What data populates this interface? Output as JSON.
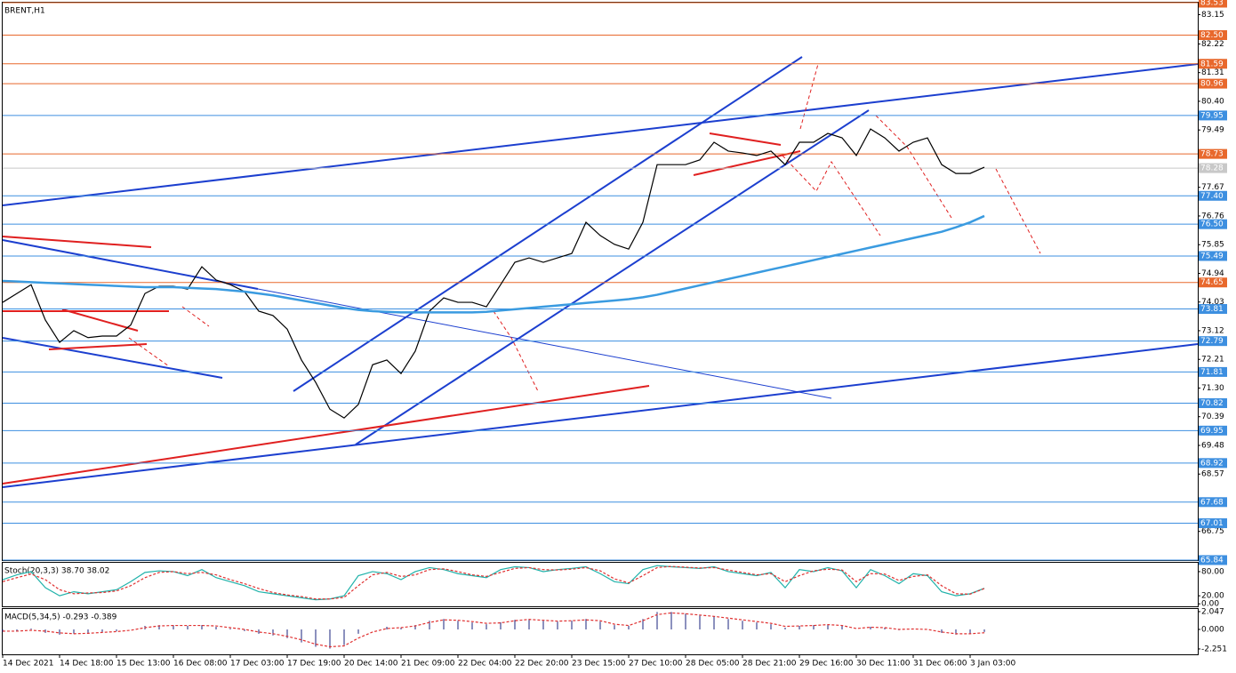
{
  "chart_data": [
    {
      "type": "line",
      "title": "BRENT,H1",
      "categories": [
        "14 Dec 2021",
        null,
        null,
        null,
        "14 Dec 18:00",
        null,
        null,
        null,
        "15 Dec 13:00",
        null,
        null,
        null,
        "16 Dec 08:00",
        null,
        null,
        null,
        "17 Dec 03:00",
        null,
        null,
        null,
        "17 Dec 19:00",
        null,
        null,
        null,
        "20 Dec 14:00",
        null,
        null,
        null,
        "21 Dec 09:00",
        null,
        null,
        null,
        "22 Dec 04:00",
        null,
        null,
        null,
        "22 Dec 20:00",
        null,
        null,
        null,
        "23 Dec 15:00",
        null,
        null,
        null,
        "27 Dec 10:00",
        null,
        null,
        null,
        "28 Dec 05:00",
        null,
        null,
        null,
        "28 Dec 21:00",
        null,
        null,
        null,
        "29 Dec 16:00",
        null,
        null,
        null,
        "30 Dec 11:00",
        null,
        null,
        null,
        "31 Dec 06:00",
        null,
        null,
        null,
        "3 Jan 03:00",
        null
      ],
      "series": [
        {
          "color": "#000000",
          "values": [
            74.02,
            74.3,
            74.58,
            73.46,
            72.75,
            73.12,
            72.9,
            72.95,
            72.95,
            73.3,
            74.3,
            74.53,
            74.53,
            74.44,
            75.15,
            74.73,
            74.58,
            74.36,
            73.74,
            73.6,
            73.17,
            72.19,
            71.48,
            70.63,
            70.35,
            70.78,
            72.04,
            72.19,
            71.76,
            72.47,
            73.74,
            74.16,
            74.02,
            74.02,
            73.88,
            74.58,
            75.29,
            75.43,
            75.29,
            75.43,
            75.57,
            76.56,
            76.14,
            75.86,
            75.71,
            76.56,
            78.39,
            78.39,
            78.39,
            78.54,
            79.1,
            78.82,
            78.76,
            78.68,
            78.82,
            78.39,
            79.1,
            79.1,
            79.38,
            79.24,
            78.68,
            79.52,
            79.24,
            78.82,
            79.1,
            79.24,
            78.39,
            78.11,
            78.11,
            78.31
          ]
        },
        {
          "color": "#3a9be0",
          "values": [
            74.7,
            74.68,
            74.66,
            74.64,
            74.62,
            74.6,
            74.58,
            74.56,
            74.54,
            74.52,
            74.5,
            74.5,
            74.5,
            74.48,
            74.46,
            74.44,
            74.4,
            74.36,
            74.3,
            74.24,
            74.16,
            74.08,
            74.0,
            73.92,
            73.84,
            73.78,
            73.74,
            73.72,
            73.7,
            73.7,
            73.7,
            73.7,
            73.7,
            73.7,
            73.72,
            73.76,
            73.8,
            73.84,
            73.88,
            73.92,
            73.96,
            74.0,
            74.04,
            74.08,
            74.12,
            74.18,
            74.26,
            74.36,
            74.46,
            74.56,
            74.66,
            74.76,
            74.86,
            74.96,
            75.06,
            75.16,
            75.26,
            75.36,
            75.46,
            75.56,
            75.66,
            75.76,
            75.86,
            75.96,
            76.06,
            76.16,
            76.26,
            76.4,
            76.56,
            76.76
          ]
        }
      ],
      "ylim": [
        65.84,
        83.53
      ],
      "yticks": [
        83.15,
        82.22,
        81.31,
        {
          "value": 80.4,
          "label": "80.40"
        },
        79.49,
        77.67,
        76.76,
        75.85,
        74.94,
        74.03,
        73.12,
        72.21,
        {
          "value": 71.3,
          "label": "71.30"
        },
        70.39,
        69.48,
        68.57,
        66.75
      ],
      "levels": [
        {
          "value": 83.53,
          "color": "#e8682c"
        },
        {
          "value": 82.5,
          "label": "82.50",
          "color": "#e8682c"
        },
        {
          "value": 81.59,
          "color": "#e8682c"
        },
        {
          "value": 80.96,
          "color": "#e8682c"
        },
        {
          "value": 79.95,
          "color": "#3d8fe0"
        },
        {
          "value": 78.73,
          "color": "#e8682c"
        },
        {
          "value": 78.28,
          "color": "#c8c8c8"
        },
        {
          "value": 77.4,
          "label": "77.40",
          "color": "#3d8fe0"
        },
        {
          "value": 76.5,
          "label": "76.50",
          "color": "#3d8fe0"
        },
        {
          "value": 75.49,
          "color": "#3d8fe0"
        },
        {
          "value": 74.65,
          "color": "#e8682c"
        },
        {
          "value": 73.81,
          "color": "#3d8fe0"
        },
        {
          "value": 72.79,
          "color": "#3d8fe0"
        },
        {
          "value": 71.81,
          "color": "#3d8fe0"
        },
        {
          "value": 70.82,
          "color": "#3d8fe0"
        },
        {
          "value": 69.95,
          "color": "#3d8fe0"
        },
        {
          "value": 68.92,
          "color": "#3d8fe0"
        },
        {
          "value": 67.68,
          "color": "#3d8fe0"
        },
        {
          "value": 67.01,
          "color": "#3d8fe0"
        },
        {
          "value": 65.84,
          "color": "#3d8fe0"
        }
      ]
    },
    {
      "type": "line",
      "title": "Stoch(20,3,3) 38.70 38.02",
      "series": [
        {
          "color": "#20b2aa",
          "values": [
            60,
            72,
            80,
            40,
            20,
            30,
            25,
            30,
            35,
            55,
            78,
            82,
            80,
            70,
            85,
            65,
            55,
            45,
            30,
            25,
            20,
            15,
            10,
            12,
            20,
            70,
            80,
            75,
            60,
            80,
            90,
            85,
            75,
            70,
            65,
            85,
            92,
            90,
            80,
            85,
            88,
            92,
            75,
            55,
            50,
            85,
            95,
            92,
            90,
            88,
            92,
            80,
            75,
            70,
            78,
            40,
            85,
            80,
            90,
            82,
            40,
            85,
            70,
            50,
            75,
            70,
            30,
            20,
            25,
            38.7
          ]
        },
        {
          "color": "#e03030",
          "dashed": true,
          "values": [
            55,
            65,
            74,
            60,
            35,
            25,
            27,
            28,
            32,
            45,
            65,
            78,
            80,
            75,
            78,
            72,
            60,
            50,
            38,
            28,
            22,
            18,
            12,
            12,
            16,
            45,
            72,
            78,
            68,
            72,
            85,
            87,
            80,
            72,
            68,
            78,
            88,
            90,
            85,
            84,
            86,
            90,
            82,
            62,
            52,
            70,
            90,
            93,
            91,
            89,
            90,
            84,
            78,
            72,
            75,
            55,
            70,
            82,
            86,
            84,
            55,
            75,
            74,
            58,
            68,
            72,
            45,
            25,
            24,
            38.02
          ]
        }
      ],
      "ylim": [
        -4,
        102
      ],
      "yticks": [
        {
          "value": 80,
          "label": "80.00"
        },
        {
          "value": 20,
          "label": "20.00"
        },
        {
          "value": 0,
          "label": "0.00"
        }
      ]
    },
    {
      "type": "combo",
      "title": "MACD(5,34,5) -0.293 -0.389",
      "series": [
        {
          "type": "bar",
          "color": "#1a237e",
          "values": [
            -0.3,
            -0.2,
            0.1,
            -0.4,
            -0.6,
            -0.5,
            -0.4,
            -0.3,
            -0.2,
            0.0,
            0.4,
            0.5,
            0.5,
            0.4,
            0.5,
            0.3,
            0.1,
            -0.2,
            -0.5,
            -0.7,
            -1.0,
            -1.5,
            -2.0,
            -2.2,
            -1.8,
            -0.5,
            0.0,
            0.3,
            0.2,
            0.5,
            1.0,
            1.2,
            1.0,
            0.8,
            0.6,
            0.8,
            1.1,
            1.2,
            1.0,
            0.9,
            1.0,
            1.2,
            0.9,
            0.5,
            0.4,
            1.2,
            2.0,
            2.0,
            1.8,
            1.6,
            1.5,
            1.2,
            1.0,
            0.8,
            0.6,
            0.2,
            0.4,
            0.5,
            0.6,
            0.4,
            0.0,
            0.3,
            0.2,
            -0.1,
            0.1,
            0.0,
            -0.4,
            -0.6,
            -0.5,
            -0.293
          ]
        },
        {
          "type": "line",
          "color": "#e03030",
          "dashed": true,
          "values": [
            -0.2,
            -0.2,
            -0.1,
            -0.2,
            -0.4,
            -0.5,
            -0.45,
            -0.35,
            -0.25,
            -0.1,
            0.2,
            0.4,
            0.45,
            0.45,
            0.45,
            0.4,
            0.2,
            0.0,
            -0.3,
            -0.5,
            -0.8,
            -1.2,
            -1.7,
            -2.0,
            -1.9,
            -1.0,
            -0.3,
            0.1,
            0.2,
            0.4,
            0.8,
            1.1,
            1.05,
            0.9,
            0.7,
            0.75,
            1.0,
            1.15,
            1.05,
            0.95,
            1.0,
            1.1,
            1.0,
            0.6,
            0.45,
            1.0,
            1.7,
            1.9,
            1.8,
            1.65,
            1.5,
            1.3,
            1.1,
            0.9,
            0.7,
            0.35,
            0.4,
            0.45,
            0.55,
            0.45,
            0.1,
            0.25,
            0.2,
            0.0,
            0.05,
            0.0,
            -0.3,
            -0.5,
            -0.5,
            -0.389
          ]
        }
      ],
      "ylim": [
        -2.87,
        2.35
      ],
      "yticks": [
        2.047,
        {
          "value": 0,
          "label": "0.000"
        },
        -2.251
      ]
    }
  ]
}
